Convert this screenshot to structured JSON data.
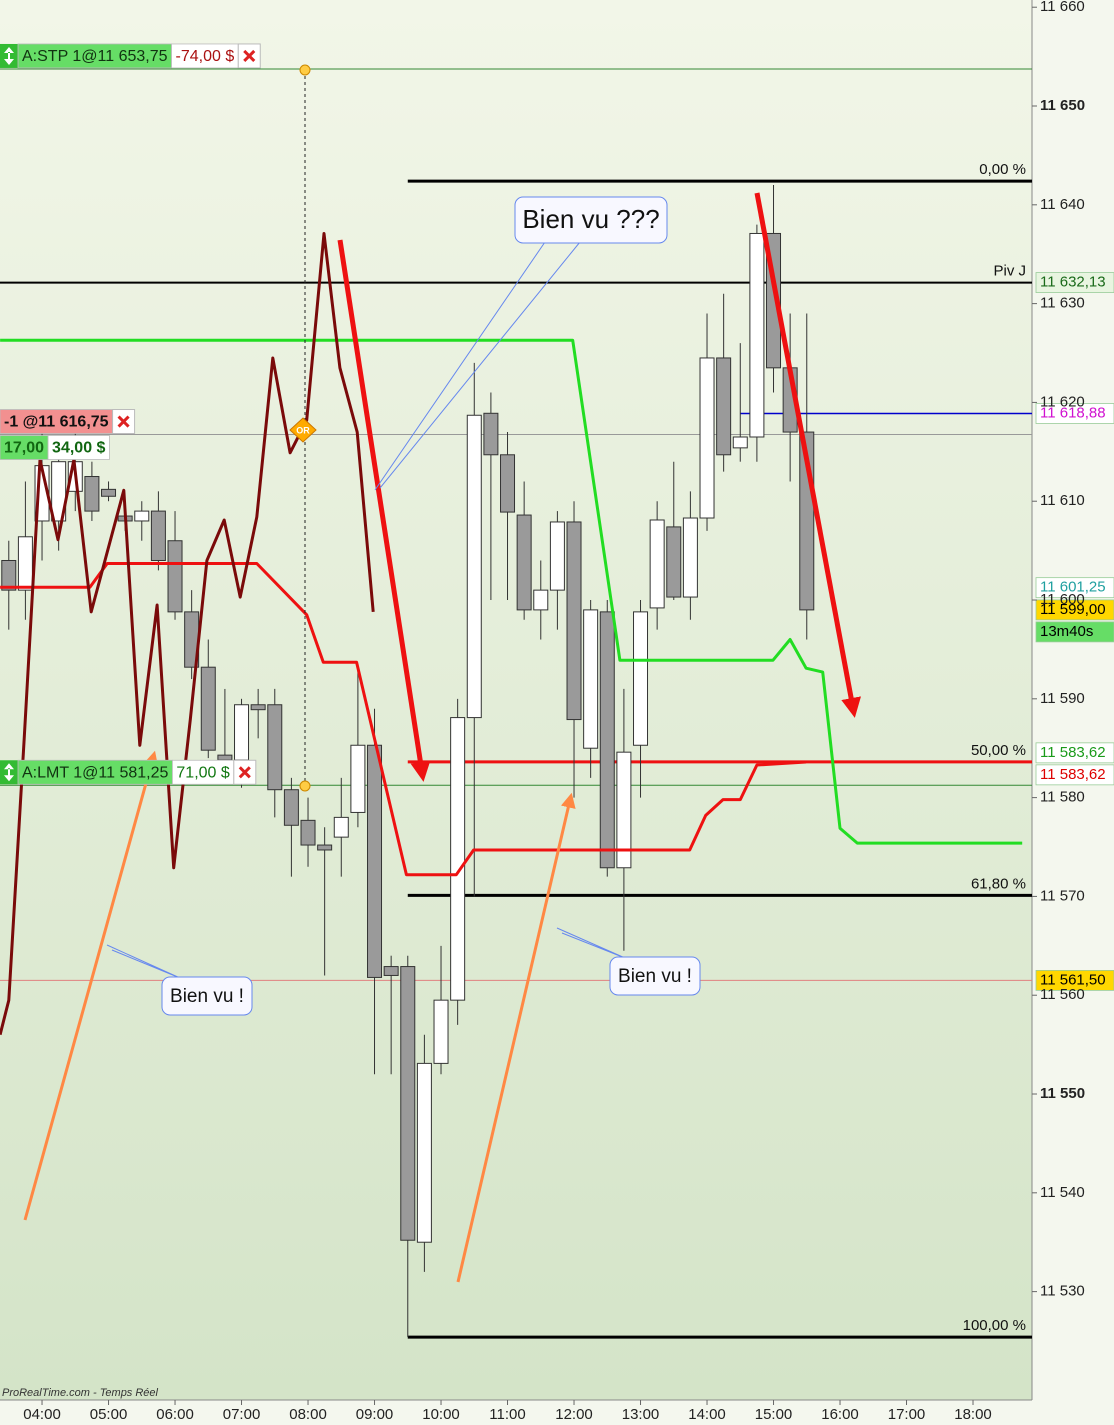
{
  "chart_data": {
    "type": "candlestick",
    "xlim": [
      3.368,
      18.887
    ],
    "ylim": [
      11519.03,
      11660.73
    ],
    "xticks": [
      {
        "value": 4,
        "label": "04:00"
      },
      {
        "value": 5,
        "label": "05:00"
      },
      {
        "value": 6,
        "label": "06:00"
      },
      {
        "value": 7,
        "label": "07:00"
      },
      {
        "value": 8,
        "label": "08:00"
      },
      {
        "value": 9,
        "label": "09:00"
      },
      {
        "value": 10,
        "label": "10:00"
      },
      {
        "value": 11,
        "label": "11:00"
      },
      {
        "value": 12,
        "label": "12:00"
      },
      {
        "value": 13,
        "label": "13:00"
      },
      {
        "value": 14,
        "label": "14:00"
      },
      {
        "value": 15,
        "label": "15:00"
      },
      {
        "value": 16,
        "label": "16:00"
      },
      {
        "value": 17,
        "label": "17:00"
      },
      {
        "value": 18,
        "label": "18:00"
      }
    ],
    "yticks": [
      {
        "value": 11530,
        "label": "11 530"
      },
      {
        "value": 11540,
        "label": "11 540"
      },
      {
        "value": 11550,
        "label": "11 550",
        "bold": true
      },
      {
        "value": 11560,
        "label": "11 560"
      },
      {
        "value": 11570,
        "label": "11 570"
      },
      {
        "value": 11580,
        "label": "11 580"
      },
      {
        "value": 11590,
        "label": "11 590"
      },
      {
        "value": 11600,
        "label": "11 600"
      },
      {
        "value": 11610,
        "label": "11 610"
      },
      {
        "value": 11620,
        "label": "11 620"
      },
      {
        "value": 11630,
        "label": "11 630"
      },
      {
        "value": 11640,
        "label": "11 640"
      },
      {
        "value": 11650,
        "label": "11 650",
        "bold": true
      },
      {
        "value": 11660,
        "label": "11 660"
      }
    ],
    "x": [
      3.5,
      3.75,
      4.0,
      4.25,
      4.5,
      4.75,
      5.0,
      5.25,
      5.5,
      5.75,
      6.0,
      6.25,
      6.5,
      6.75,
      7.0,
      7.25,
      7.5,
      7.75,
      8.0,
      8.25,
      8.5,
      8.75,
      9.0,
      9.25,
      9.5,
      9.75,
      10.0,
      10.25,
      10.5,
      10.75,
      11.0,
      11.25,
      11.5,
      11.75,
      12.0,
      12.25,
      12.5,
      12.75,
      13.0,
      13.25,
      13.5,
      13.75,
      14.0,
      14.25,
      14.5,
      14.75,
      15.0,
      15.25,
      15.5
    ],
    "open": [
      11604,
      11601,
      11608,
      11608,
      11611,
      11612.5,
      11611.2,
      11608.5,
      11608,
      11609,
      11606,
      11598.8,
      11593.2,
      11584.3,
      11583.8,
      11589.4,
      11589.4,
      11580.8,
      11577.7,
      11575.2,
      11576,
      11578.5,
      11585.3,
      11562.9,
      11562.9,
      11535,
      11553.1,
      11559.5,
      11588.1,
      11618.9,
      11614.7,
      11608.6,
      11599,
      11601,
      11607.9,
      11585,
      11598.8,
      11572.9,
      11585.3,
      11599.2,
      11607.4,
      11600.3,
      11608.3,
      11624.5,
      11615.4,
      11616.5,
      11637.1,
      11623.5,
      11617
    ],
    "high": [
      11606,
      11612,
      11618,
      11616,
      11617,
      11614,
      11612,
      11610,
      11610,
      11611,
      11609,
      11601,
      11596,
      11591,
      11590,
      11591,
      11591,
      11582,
      11580,
      11577,
      11582,
      11593,
      11589,
      11564,
      11564,
      11556,
      11565,
      11590,
      11624,
      11621,
      11617,
      11612,
      11604,
      11609,
      11610,
      11600,
      11600,
      11591,
      11600,
      11610,
      11614,
      11611,
      11629,
      11631,
      11626,
      11638,
      11642,
      11629,
      11629
    ],
    "low": [
      11597,
      11598,
      11604,
      11605,
      11609,
      11608,
      11610,
      11607,
      11606,
      11603,
      11598,
      11592,
      11584,
      11582,
      11581,
      11586,
      11578,
      11572,
      11573,
      11562,
      11572,
      11577,
      11552,
      11552,
      11525.4,
      11532,
      11552,
      11557,
      11570,
      11600,
      11600,
      11598,
      11596,
      11597,
      11580,
      11582,
      11572,
      11564.5,
      11580,
      11597,
      11600,
      11598,
      11607,
      11613,
      11614,
      11614,
      11621,
      11612,
      11596
    ],
    "close": [
      11601,
      11606.4,
      11613.6,
      11614,
      11614,
      11609,
      11610.5,
      11608,
      11609,
      11604,
      11598.8,
      11593.2,
      11584.8,
      11583.8,
      11589.4,
      11588.9,
      11580.8,
      11577.2,
      11575.2,
      11574.7,
      11578,
      11585.3,
      11561.8,
      11562,
      11535.2,
      11553.1,
      11559.5,
      11588.1,
      11618.7,
      11614.7,
      11608.9,
      11599,
      11601,
      11607.9,
      11587.9,
      11599,
      11572.9,
      11584.6,
      11598.8,
      11608.1,
      11600.3,
      11608.3,
      11624.5,
      11614.7,
      11616.5,
      11637.1,
      11623.5,
      11617,
      11599
    ],
    "up_color": "#ffffff",
    "down_color": "#9a9a9a",
    "lines": [
      {
        "color": "#22dd22",
        "width": 3,
        "x": [
          3.37,
          11.98,
          12.69,
          14.99,
          15.25,
          15.49,
          15.74,
          16.0,
          16.26,
          18.74
        ],
        "values": [
          11626.3,
          11626.3,
          11593.9,
          11593.9,
          11596.0,
          11593.1,
          11592.7,
          11576.9,
          11575.4,
          11575.4
        ]
      },
      {
        "color": "#ee1111",
        "width": 3,
        "x": [
          3.37,
          4.72,
          4.98,
          7.23,
          7.98,
          8.23,
          8.73,
          9.48,
          10.23,
          10.49,
          13.74,
          13.98,
          14.24,
          14.5,
          14.75,
          15.49
        ],
        "values": [
          11601.3,
          11601.3,
          11603.7,
          11603.7,
          11598.5,
          11593.7,
          11593.7,
          11572.2,
          11572.2,
          11574.7,
          11574.7,
          11578.2,
          11579.8,
          11579.8,
          11583.3,
          11583.6
        ]
      },
      {
        "color": "#7a0a0a",
        "width": 3,
        "x": [
          3.37,
          3.5,
          3.73,
          3.97,
          4.24,
          4.48,
          4.74,
          5.23,
          5.47,
          5.73,
          5.98,
          6.23,
          6.48,
          6.74,
          6.98,
          7.23,
          7.47,
          7.73,
          7.98,
          8.24,
          8.48,
          8.74,
          8.98
        ],
        "values": [
          11556.0,
          11559.5,
          11585.8,
          11614.2,
          11606.1,
          11614.2,
          11598.8,
          11611.1,
          11585.3,
          11599.5,
          11572.9,
          11587.9,
          11604.0,
          11608.1,
          11600.3,
          11608.4,
          11624.5,
          11614.9,
          11618.2,
          11637.1,
          11623.5,
          11617.0,
          11598.8
        ]
      }
    ],
    "levels": [
      {
        "value": 11653.75,
        "color": "#338833",
        "width": 1
      },
      {
        "value": 11642.4,
        "label": "0,00 %",
        "color": "#000000",
        "width": 3,
        "from": 9.5
      },
      {
        "value": 11632.13,
        "label": "Piv J",
        "color": "#000000",
        "width": 2
      },
      {
        "value": 11618.88,
        "color": "#0000cc",
        "width": 1.5,
        "from": 14.5
      },
      {
        "value": 11616.75,
        "color": "#999999",
        "width": 1
      },
      {
        "value": 11583.62,
        "label": "50,00 %",
        "color": "#ee1111",
        "width": 3,
        "from": 9.5
      },
      {
        "value": 11581.25,
        "color": "#338833",
        "width": 1
      },
      {
        "value": 11570.1,
        "label": "61,80 %",
        "color": "#000000",
        "width": 3,
        "from": 9.5
      },
      {
        "value": 11561.5,
        "color": "#e08080",
        "width": 1
      },
      {
        "value": 11525.4,
        "label": "100,00 %",
        "color": "#000000",
        "width": 3,
        "from": 9.5
      }
    ],
    "price_tags": [
      {
        "value": 11632.13,
        "label": "11 632,13",
        "color": "#1a6a1a",
        "background": "#e8f5e0"
      },
      {
        "value": 11618.88,
        "label": "11 618,88",
        "color": "#d010d0",
        "background": "#ffffff"
      },
      {
        "value": 11601.25,
        "label": "11 601,25",
        "color": "#20a0a0",
        "background": "#ffffff"
      },
      {
        "value": 11599.0,
        "label": "11 599,00",
        "color": "#000000",
        "background": "#ffd700"
      },
      {
        "label": "13m40s",
        "color": "#000000",
        "background": "#66dd66"
      },
      {
        "value": 11583.62,
        "label": "11 583,62",
        "color": "#1a9a1a",
        "background": "#ffffff"
      },
      {
        "value": 11583.62,
        "label": "11 583,62",
        "color": "#dd0000",
        "background": "#ffffff"
      },
      {
        "value": 11561.5,
        "label": "11 561,50",
        "color": "#000000",
        "background": "#ffd700"
      }
    ],
    "orders": [
      {
        "value": 11653.75,
        "label": "A:STP 1@11 653,75",
        "pnl": "-74,00 $",
        "pnl_color": "#aa1111"
      },
      {
        "value": 11616.75,
        "label": "-1 @11 616,75",
        "details": [
          "17,00",
          "34,00 $"
        ]
      },
      {
        "value": 11581.25,
        "label": "A:LMT 1@11 581,25",
        "pnl": "71,00 $",
        "pnl_color": "#117711"
      }
    ],
    "annotations": [
      "Bien vu ???",
      "Bien vu !",
      "Bien vu !"
    ],
    "signal_label": "OR",
    "source": "ProRealTime.com - Temps Réel"
  }
}
